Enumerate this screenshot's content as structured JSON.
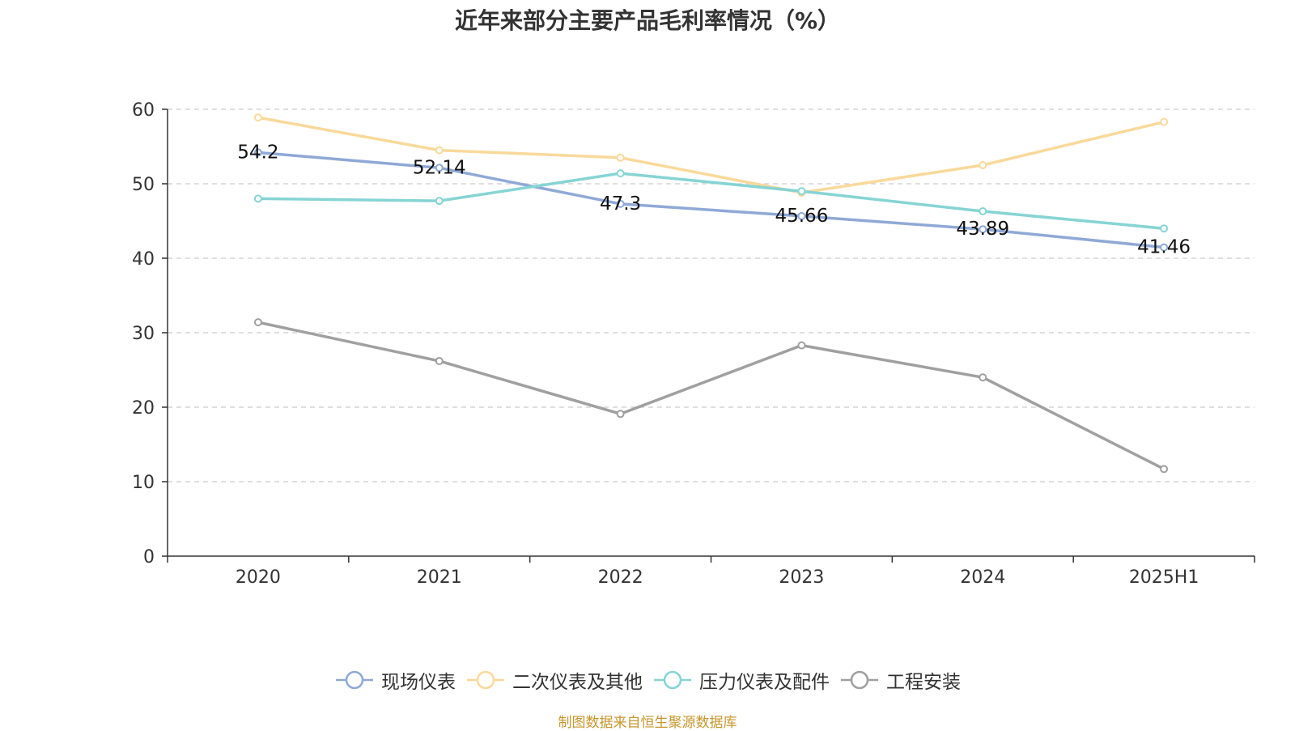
{
  "chart_data": {
    "type": "line",
    "title": "近年来部分主要产品毛利率情况（%）",
    "categories": [
      "2020",
      "2021",
      "2022",
      "2023",
      "2024",
      "2025H1"
    ],
    "ylim": [
      0,
      60
    ],
    "yticks": [
      0,
      10,
      20,
      30,
      40,
      50,
      60
    ],
    "grid": "horizontal-dashed",
    "legend_position": "bottom",
    "series": [
      {
        "name": "现场仪表",
        "color": "#8fa9d6",
        "values": [
          54.2,
          52.14,
          47.3,
          45.66,
          43.89,
          41.46
        ],
        "data_labels": [
          "54.2",
          "52.14",
          "47.3",
          "45.66",
          "43.89",
          "41.46"
        ]
      },
      {
        "name": "二次仪表及其他",
        "color": "#f9d99a",
        "values": [
          58.9,
          54.5,
          53.5,
          48.8,
          52.5,
          58.3
        ]
      },
      {
        "name": "压力仪表及配件",
        "color": "#86d4d4",
        "values": [
          48.0,
          47.7,
          51.4,
          49.0,
          46.3,
          44.0
        ]
      },
      {
        "name": "工程安装",
        "color": "#a0a0a0",
        "values": [
          31.4,
          26.2,
          19.1,
          28.3,
          24.0,
          11.7
        ]
      }
    ]
  },
  "source_note": "制图数据来自恒生聚源数据库"
}
